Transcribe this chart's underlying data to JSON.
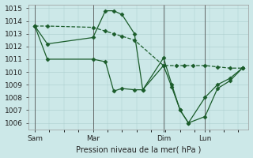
{
  "xlabel": "Pression niveau de la mer( hPa )",
  "ylim_min": 1005.5,
  "ylim_max": 1015.3,
  "yticks": [
    1006,
    1007,
    1008,
    1009,
    1010,
    1011,
    1012,
    1013,
    1014,
    1015
  ],
  "background_color": "#cce8e8",
  "grid_color": "#aacccc",
  "line_color": "#1a5c2a",
  "vline_labels": [
    "Sam",
    "Mar",
    "Dim",
    "Lun"
  ],
  "vline_x": [
    0.0,
    0.28,
    0.62,
    0.82
  ],
  "xlim_min": -0.03,
  "xlim_max": 1.03,
  "series1_dash": {
    "x": [
      0.0,
      0.06,
      0.28,
      0.34,
      0.38,
      0.42,
      0.48,
      0.62,
      0.68,
      0.72,
      0.76,
      0.82,
      0.88,
      0.94,
      1.0
    ],
    "y": [
      1013.6,
      1013.6,
      1013.5,
      1013.2,
      1013.0,
      1012.8,
      1012.5,
      1010.5,
      1010.5,
      1010.5,
      1010.5,
      1010.5,
      1010.4,
      1010.3,
      1010.3
    ]
  },
  "series2_solid": {
    "x": [
      0.0,
      0.06,
      0.28,
      0.34,
      0.38,
      0.42,
      0.48,
      0.52,
      0.62,
      0.66,
      0.7,
      0.74,
      0.82,
      0.88,
      0.94,
      1.0
    ],
    "y": [
      1013.6,
      1012.2,
      1012.7,
      1014.8,
      1014.8,
      1014.5,
      1013.0,
      1008.6,
      1010.5,
      1008.8,
      1007.0,
      1006.0,
      1006.5,
      1008.7,
      1009.3,
      1010.3
    ]
  },
  "series3_solid": {
    "x": [
      0.0,
      0.06,
      0.28,
      0.34,
      0.38,
      0.42,
      0.48,
      0.52,
      0.62,
      0.66,
      0.7,
      0.74,
      0.82,
      0.88,
      0.94,
      1.0
    ],
    "y": [
      1013.6,
      1011.0,
      1011.0,
      1010.8,
      1008.5,
      1008.7,
      1008.6,
      1008.6,
      1011.1,
      1009.0,
      1007.0,
      1006.0,
      1008.0,
      1009.0,
      1009.5,
      1010.3
    ]
  }
}
